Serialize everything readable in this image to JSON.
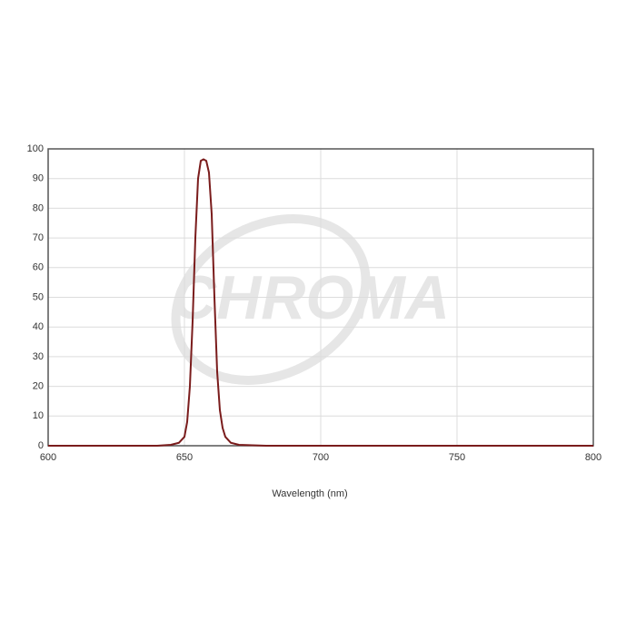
{
  "chart_data": {
    "type": "line",
    "watermark": "CHROMA",
    "xlabel": "Wavelength (nm)",
    "x": [
      600,
      620,
      640,
      645,
      648,
      650,
      651,
      652,
      653,
      654,
      655,
      656,
      657,
      658,
      659,
      660,
      661,
      662,
      663,
      664,
      665,
      667,
      670,
      680,
      700,
      750,
      800
    ],
    "series": [
      {
        "color": "#7a1c1c",
        "values": [
          0,
          0,
          0,
          0.3,
          1,
          3,
          8,
          20,
          42,
          70,
          90,
          96,
          96.5,
          96,
          92,
          78,
          50,
          25,
          12,
          6,
          3,
          1,
          0.3,
          0,
          0,
          0,
          0
        ]
      }
    ],
    "xlim": [
      600,
      800
    ],
    "xticks": [
      600,
      650,
      700,
      750,
      800
    ],
    "ylim": [
      0,
      100
    ],
    "yticks": [
      0,
      10,
      20,
      30,
      40,
      50,
      60,
      70,
      80,
      90,
      100
    ],
    "grid": true
  }
}
